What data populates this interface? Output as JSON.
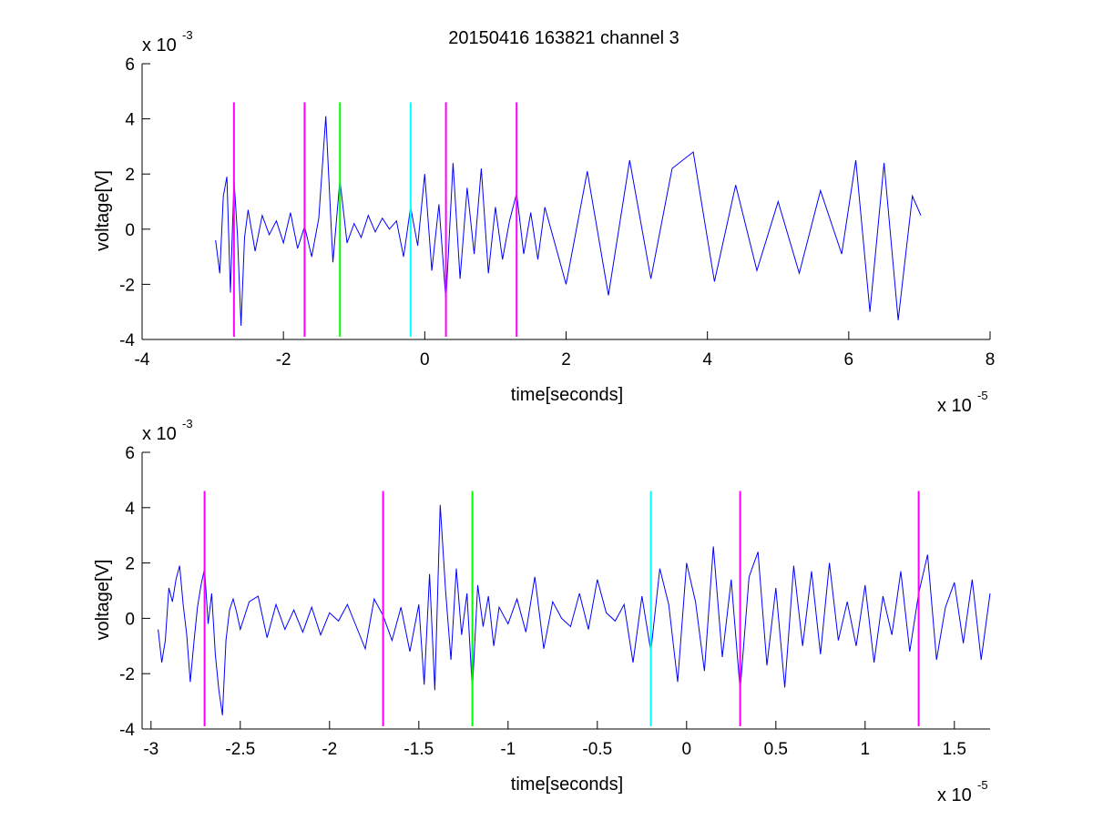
{
  "figure_title": "20150416 163821 channel 3",
  "chart_data": [
    {
      "type": "line",
      "title": "20150416 163821 channel 3",
      "xlabel": "time[seconds]",
      "ylabel": "voltage[V]",
      "x_multiplier": "x 10",
      "x_multiplier_exp": "-5",
      "y_multiplier": "x 10",
      "y_multiplier_exp": "-3",
      "xlim": [
        -4,
        8
      ],
      "ylim": [
        -4,
        6
      ],
      "xticks": [
        -4,
        -2,
        0,
        2,
        4,
        6,
        8
      ],
      "xtick_labels": [
        "-4",
        "-2",
        "0",
        "2",
        "4",
        "6",
        "8"
      ],
      "yticks": [
        -4,
        -2,
        0,
        2,
        4,
        6
      ],
      "ytick_labels": [
        "-4",
        "-2",
        "0",
        "2",
        "4",
        "6"
      ],
      "grid": false,
      "series": [
        {
          "color": "#0000ff",
          "x": [
            -2.96,
            -2.9,
            -2.85,
            -2.8,
            -2.75,
            -2.7,
            -2.65,
            -2.6,
            -2.55,
            -2.5,
            -2.4,
            -2.3,
            -2.2,
            -2.1,
            -2.0,
            -1.9,
            -1.8,
            -1.7,
            -1.6,
            -1.5,
            -1.4,
            -1.3,
            -1.2,
            -1.1,
            -1.0,
            -0.9,
            -0.8,
            -0.7,
            -0.6,
            -0.5,
            -0.4,
            -0.3,
            -0.2,
            -0.1,
            0.0,
            0.1,
            0.2,
            0.3,
            0.4,
            0.5,
            0.6,
            0.7,
            0.8,
            0.9,
            1.0,
            1.1,
            1.2,
            1.3,
            1.4,
            1.5,
            1.6,
            1.7,
            2.0,
            2.3,
            2.6,
            2.9,
            3.2,
            3.5,
            3.8,
            4.1,
            4.4,
            4.7,
            5.0,
            5.3,
            5.6,
            5.9,
            6.1,
            6.3,
            6.5,
            6.7,
            6.9,
            7.02
          ],
          "y": [
            -0.4,
            -1.6,
            1.2,
            1.9,
            -2.3,
            1.8,
            -0.2,
            -3.5,
            -0.3,
            0.7,
            -0.8,
            0.5,
            -0.2,
            0.3,
            -0.5,
            0.6,
            -0.7,
            0.1,
            -1.0,
            0.4,
            4.1,
            -1.2,
            1.8,
            -0.5,
            0.2,
            -0.3,
            0.5,
            -0.1,
            0.4,
            0.0,
            0.3,
            -1.0,
            0.8,
            -0.6,
            2.0,
            -1.5,
            0.9,
            -2.6,
            2.4,
            -1.8,
            1.5,
            -0.9,
            2.2,
            -1.6,
            0.8,
            -1.1,
            0.3,
            1.3,
            -0.9,
            0.6,
            -1.1,
            0.8,
            -2.0,
            2.1,
            -2.4,
            2.5,
            -1.8,
            2.2,
            2.8,
            -1.9,
            1.6,
            -1.5,
            1.0,
            -1.6,
            1.4,
            -0.9,
            2.5,
            -3.0,
            2.4,
            -3.3,
            1.2,
            0.5
          ]
        }
      ],
      "markers": [
        {
          "x": -2.7,
          "color": "#ff00ff"
        },
        {
          "x": -1.7,
          "color": "#ff00ff"
        },
        {
          "x": -1.2,
          "color": "#00ff00"
        },
        {
          "x": -0.2,
          "color": "#00ffff"
        },
        {
          "x": 0.3,
          "color": "#ff00ff"
        },
        {
          "x": 1.3,
          "color": "#ff00ff"
        }
      ],
      "marker_range": [
        -3.9,
        4.6
      ]
    },
    {
      "type": "line",
      "xlabel": "time[seconds]",
      "ylabel": "voltage[V]",
      "x_multiplier": "x 10",
      "x_multiplier_exp": "-5",
      "y_multiplier": "x 10",
      "y_multiplier_exp": "-3",
      "xlim": [
        -3.05,
        1.7
      ],
      "ylim": [
        -4,
        6
      ],
      "xticks": [
        -3,
        -2.5,
        -2,
        -1.5,
        -1,
        -0.5,
        0,
        0.5,
        1,
        1.5
      ],
      "xtick_labels": [
        "-3",
        "-2.5",
        "-2",
        "-1.5",
        "-1",
        "-0.5",
        "0",
        "0.5",
        "1",
        "1.5"
      ],
      "yticks": [
        -4,
        -2,
        0,
        2,
        4,
        6
      ],
      "ytick_labels": [
        "-4",
        "-2",
        "0",
        "2",
        "4",
        "6"
      ],
      "grid": false,
      "series": [
        {
          "color": "#0000ff",
          "x": [
            -2.96,
            -2.94,
            -2.92,
            -2.9,
            -2.88,
            -2.86,
            -2.84,
            -2.82,
            -2.8,
            -2.78,
            -2.76,
            -2.74,
            -2.72,
            -2.7,
            -2.68,
            -2.66,
            -2.64,
            -2.62,
            -2.6,
            -2.58,
            -2.56,
            -2.54,
            -2.52,
            -2.5,
            -2.45,
            -2.4,
            -2.35,
            -2.3,
            -2.25,
            -2.2,
            -2.15,
            -2.1,
            -2.05,
            -2.0,
            -1.95,
            -1.9,
            -1.85,
            -1.8,
            -1.75,
            -1.7,
            -1.65,
            -1.6,
            -1.55,
            -1.5,
            -1.47,
            -1.44,
            -1.41,
            -1.38,
            -1.35,
            -1.32,
            -1.29,
            -1.26,
            -1.23,
            -1.2,
            -1.17,
            -1.14,
            -1.11,
            -1.08,
            -1.05,
            -1.0,
            -0.95,
            -0.9,
            -0.85,
            -0.8,
            -0.75,
            -0.7,
            -0.65,
            -0.6,
            -0.55,
            -0.5,
            -0.45,
            -0.4,
            -0.35,
            -0.3,
            -0.25,
            -0.2,
            -0.15,
            -0.1,
            -0.05,
            0.0,
            0.05,
            0.1,
            0.15,
            0.2,
            0.25,
            0.3,
            0.35,
            0.4,
            0.45,
            0.5,
            0.55,
            0.6,
            0.65,
            0.7,
            0.75,
            0.8,
            0.85,
            0.9,
            0.95,
            1.0,
            1.05,
            1.1,
            1.15,
            1.2,
            1.25,
            1.3,
            1.35,
            1.4,
            1.45,
            1.5,
            1.55,
            1.6,
            1.65,
            1.7
          ],
          "y": [
            -0.4,
            -1.6,
            -0.8,
            1.1,
            0.6,
            1.4,
            1.9,
            0.5,
            -0.6,
            -2.3,
            -0.9,
            0.4,
            1.2,
            1.8,
            -0.2,
            0.9,
            -1.3,
            -2.6,
            -3.5,
            -0.8,
            0.3,
            0.7,
            0.2,
            -0.4,
            0.6,
            0.8,
            -0.7,
            0.5,
            -0.4,
            0.3,
            -0.5,
            0.4,
            -0.6,
            0.2,
            -0.1,
            0.5,
            -0.3,
            -1.1,
            0.7,
            0.1,
            -0.8,
            0.4,
            -1.2,
            0.5,
            -2.4,
            1.6,
            -2.6,
            4.1,
            1.0,
            -1.5,
            1.8,
            -0.6,
            0.9,
            -2.6,
            1.2,
            -0.3,
            0.8,
            -1.0,
            0.4,
            -0.2,
            0.7,
            -0.5,
            1.5,
            -1.1,
            0.6,
            0.0,
            -0.3,
            0.9,
            -0.4,
            1.4,
            0.2,
            -0.1,
            0.5,
            -1.6,
            0.8,
            -1.2,
            1.8,
            0.5,
            -2.3,
            2.0,
            0.6,
            -1.9,
            2.6,
            -1.4,
            1.4,
            -2.6,
            1.5,
            2.4,
            -1.7,
            1.1,
            -2.5,
            1.9,
            -1.0,
            1.7,
            -1.3,
            2.0,
            -0.8,
            0.6,
            -1.0,
            1.2,
            -1.6,
            0.8,
            -0.6,
            1.7,
            -1.2,
            0.9,
            2.3,
            -1.5,
            0.4,
            1.3,
            -0.9,
            1.4,
            -1.5,
            0.9
          ]
        }
      ],
      "markers": [
        {
          "x": -2.7,
          "color": "#ff00ff"
        },
        {
          "x": -1.7,
          "color": "#ff00ff"
        },
        {
          "x": -1.2,
          "color": "#00ff00"
        },
        {
          "x": -0.2,
          "color": "#00ffff"
        },
        {
          "x": 0.3,
          "color": "#ff00ff"
        },
        {
          "x": 1.3,
          "color": "#ff00ff"
        }
      ],
      "marker_range": [
        -3.9,
        4.6
      ]
    }
  ]
}
